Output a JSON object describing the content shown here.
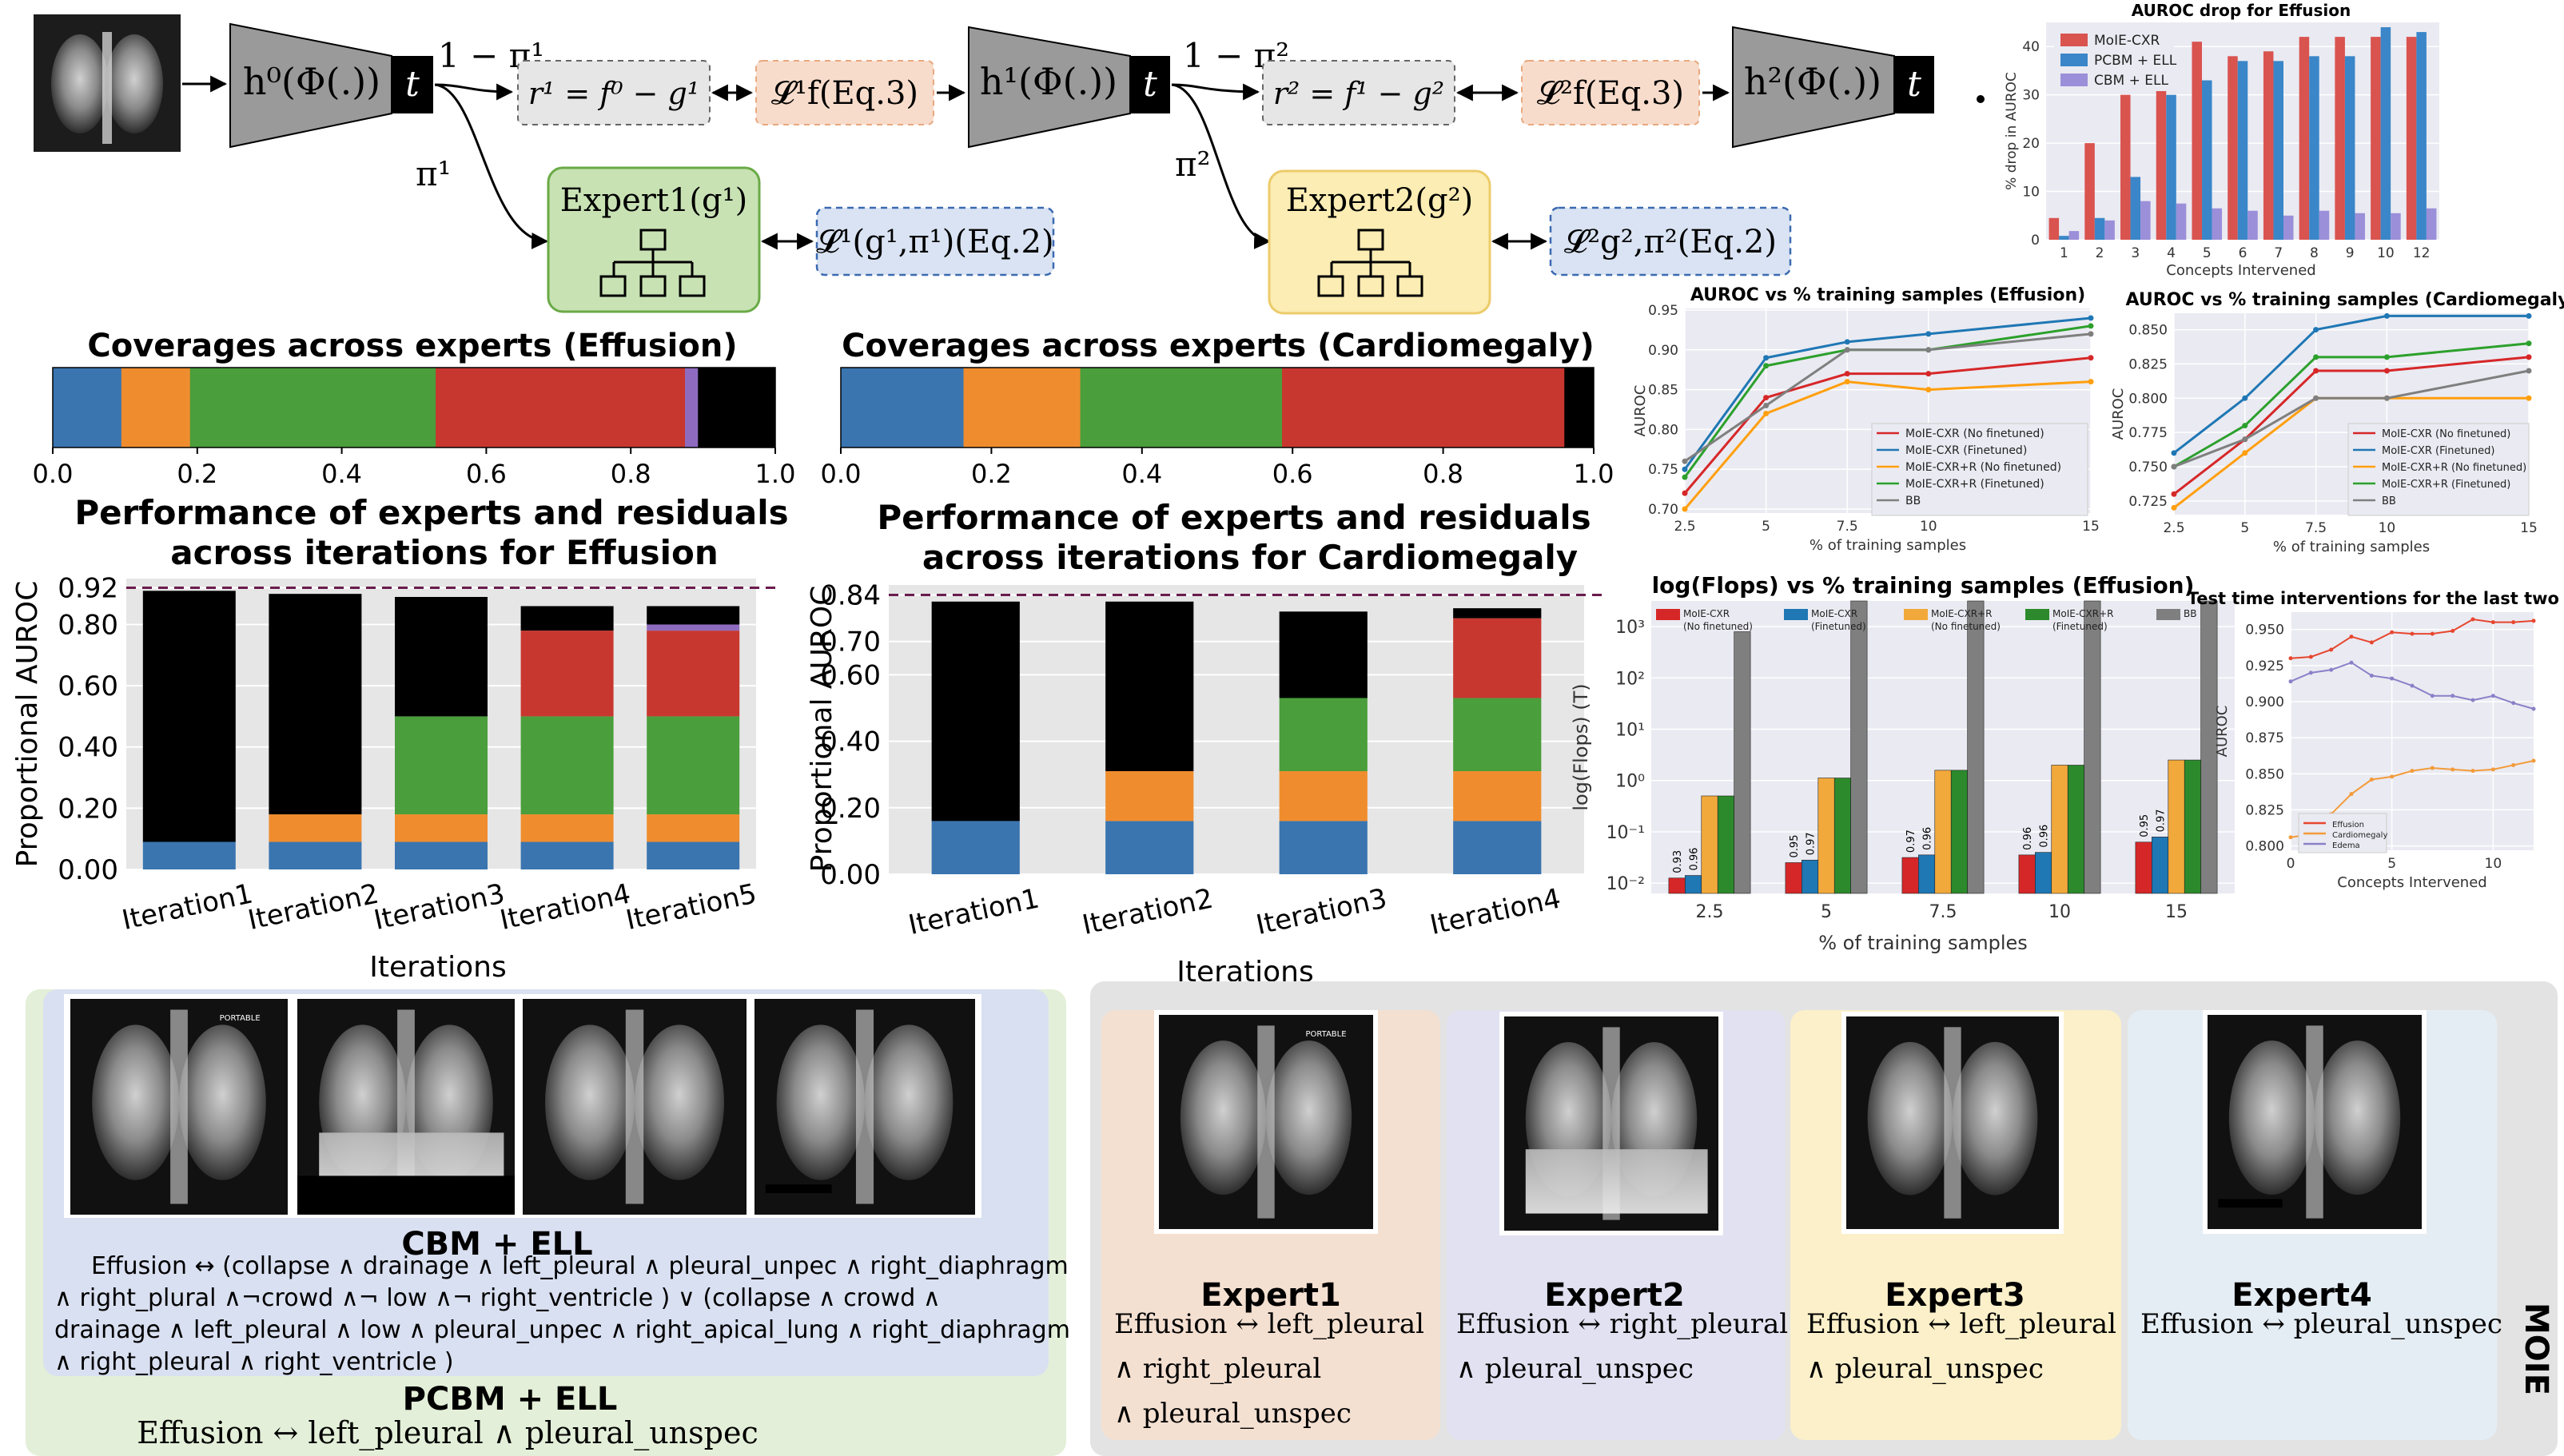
{
  "pipeline": {
    "funcs": [
      "h⁰(Φ(.))",
      "h¹(Φ(.))",
      "h²(Φ(.))"
    ],
    "t": "t",
    "one_minus_pi": [
      "1 − π¹",
      "1 − π²"
    ],
    "pi": [
      "π¹",
      "π²"
    ],
    "residuals": [
      "r¹ = f⁰ − g¹",
      "r² = f¹ − g²"
    ],
    "lf": [
      "𝓛¹f(Eq.3)",
      "𝓛²f(Eq.3)"
    ],
    "experts": [
      "Expert1(g¹)",
      "Expert2(g²)"
    ],
    "lg": [
      "𝓛¹(g¹,π¹)(Eq.2)",
      "𝓛²g²,π²(Eq.2)"
    ]
  },
  "colors": {
    "blue": "#3a75b0",
    "orange": "#ef8d2e",
    "green": "#4a9e3b",
    "red": "#c8372f",
    "purple": "#8e6bbf",
    "black": "#000000",
    "gray": "#808080",
    "bg": "#e6e6e6"
  },
  "coverage": [
    {
      "title": "Coverages across experts (Effusion)",
      "ticks": [
        "0.0",
        "0.2",
        "0.4",
        "0.6",
        "0.8",
        "1.0"
      ],
      "segments": [
        {
          "color": "blue",
          "v": 0.095
        },
        {
          "color": "orange",
          "v": 0.095
        },
        {
          "color": "green",
          "v": 0.34
        },
        {
          "color": "red",
          "v": 0.345
        },
        {
          "color": "purple",
          "v": 0.018
        },
        {
          "color": "black",
          "v": 0.107
        }
      ]
    },
    {
      "title": "Coverages across experts (Cardiomegaly)",
      "ticks": [
        "0.0",
        "0.2",
        "0.4",
        "0.6",
        "0.8",
        "1.0"
      ],
      "segments": [
        {
          "color": "blue",
          "v": 0.163
        },
        {
          "color": "orange",
          "v": 0.155
        },
        {
          "color": "green",
          "v": 0.268
        },
        {
          "color": "red",
          "v": 0.375
        },
        {
          "color": "black",
          "v": 0.039
        }
      ]
    }
  ],
  "chart_data": [
    {
      "type": "bar",
      "title": "Performance of experts and residuals across iterations for Effusion",
      "ylabel": "Proportional AUROC",
      "xlabel": "Iterations",
      "ylim": [
        0,
        0.95
      ],
      "yticks": [
        "0.00",
        "0.20",
        "0.40",
        "0.60",
        "0.80",
        "0.92"
      ],
      "reference": 0.92,
      "categories": [
        "Iteration1",
        "Iteration2",
        "Iteration3",
        "Iteration4",
        "Iteration5"
      ],
      "stacks": [
        [
          {
            "c": "blue",
            "v": 0.09
          },
          {
            "c": "black",
            "v": 0.82
          }
        ],
        [
          {
            "c": "blue",
            "v": 0.09
          },
          {
            "c": "orange",
            "v": 0.09
          },
          {
            "c": "black",
            "v": 0.72
          }
        ],
        [
          {
            "c": "blue",
            "v": 0.09
          },
          {
            "c": "orange",
            "v": 0.09
          },
          {
            "c": "green",
            "v": 0.32
          },
          {
            "c": "black",
            "v": 0.39
          }
        ],
        [
          {
            "c": "blue",
            "v": 0.09
          },
          {
            "c": "orange",
            "v": 0.09
          },
          {
            "c": "green",
            "v": 0.32
          },
          {
            "c": "red",
            "v": 0.28
          },
          {
            "c": "black",
            "v": 0.08
          }
        ],
        [
          {
            "c": "blue",
            "v": 0.09
          },
          {
            "c": "orange",
            "v": 0.09
          },
          {
            "c": "green",
            "v": 0.32
          },
          {
            "c": "red",
            "v": 0.28
          },
          {
            "c": "purple",
            "v": 0.02
          },
          {
            "c": "black",
            "v": 0.06
          }
        ]
      ]
    },
    {
      "type": "bar",
      "title": "Performance of experts and residuals across iterations for Cardiomegaly",
      "ylabel": "Proportional AUROC",
      "xlabel": "Iterations",
      "ylim": [
        0,
        0.87
      ],
      "yticks": [
        "0.00",
        "0.20",
        "0.40",
        "0.60",
        "0.70",
        "0.84"
      ],
      "reference": 0.84,
      "categories": [
        "Iteration1",
        "Iteration2",
        "Iteration3",
        "Iteration4"
      ],
      "stacks": [
        [
          {
            "c": "blue",
            "v": 0.16
          },
          {
            "c": "black",
            "v": 0.66
          }
        ],
        [
          {
            "c": "blue",
            "v": 0.16
          },
          {
            "c": "orange",
            "v": 0.15
          },
          {
            "c": "black",
            "v": 0.51
          }
        ],
        [
          {
            "c": "blue",
            "v": 0.16
          },
          {
            "c": "orange",
            "v": 0.15
          },
          {
            "c": "green",
            "v": 0.22
          },
          {
            "c": "black",
            "v": 0.26
          }
        ],
        [
          {
            "c": "blue",
            "v": 0.16
          },
          {
            "c": "orange",
            "v": 0.15
          },
          {
            "c": "green",
            "v": 0.22
          },
          {
            "c": "red",
            "v": 0.24
          },
          {
            "c": "black",
            "v": 0.03
          }
        ]
      ]
    },
    {
      "type": "bar",
      "title": "AUROC drop for Effusion",
      "xlabel": "Concepts Intervened",
      "ylabel": "% drop in AUROC",
      "ylim": [
        0,
        45
      ],
      "yticks": [
        "0",
        "10",
        "20",
        "30",
        "40"
      ],
      "categories": [
        "1",
        "2",
        "3",
        "4",
        "5",
        "6",
        "7",
        "8",
        "9",
        "10",
        "12"
      ],
      "series": [
        {
          "name": "MoIE-CXR",
          "color": "#d9534f",
          "values": [
            4.5,
            20,
            30,
            36,
            41,
            38,
            39,
            42,
            42,
            42,
            42
          ]
        },
        {
          "name": "PCBM + ELL",
          "color": "#3a86c8",
          "values": [
            0.8,
            4.5,
            13,
            30,
            33,
            37,
            37,
            38,
            38,
            44,
            43
          ]
        },
        {
          "name": "CBM + ELL",
          "color": "#9b8fd9",
          "values": [
            1.8,
            4,
            8,
            7.5,
            6.5,
            6,
            5,
            6,
            5.5,
            5.5,
            6.5
          ]
        }
      ]
    },
    {
      "type": "line",
      "title": "AUROC vs % training samples (Effusion)",
      "xlabel": "% of training samples",
      "ylabel": "AUROC",
      "ylim": [
        0.695,
        0.952
      ],
      "yticks": [
        "0.70",
        "0.75",
        "0.80",
        "0.85",
        "0.90",
        "0.95"
      ],
      "x": [
        2.5,
        5,
        7.5,
        10,
        15
      ],
      "xticks": [
        "2.5",
        "5",
        "7.5",
        "10",
        "15"
      ],
      "series": [
        {
          "name": "MoIE-CXR (No finetuned)",
          "color": "#d62728",
          "values": [
            0.72,
            0.84,
            0.87,
            0.87,
            0.89
          ]
        },
        {
          "name": "MoIE-CXR (Finetuned)",
          "color": "#1f77b4",
          "values": [
            0.75,
            0.89,
            0.91,
            0.92,
            0.94
          ]
        },
        {
          "name": "MoIE-CXR+R (No finetuned)",
          "color": "#ff9f0e",
          "values": [
            0.7,
            0.82,
            0.86,
            0.85,
            0.86
          ]
        },
        {
          "name": "MoIE-CXR+R (Finetuned)",
          "color": "#2ca02c",
          "values": [
            0.74,
            0.88,
            0.9,
            0.9,
            0.93
          ]
        },
        {
          "name": "BB",
          "color": "#7f7f7f",
          "values": [
            0.76,
            0.83,
            0.9,
            0.9,
            0.92
          ]
        }
      ]
    },
    {
      "type": "line",
      "title": "AUROC vs % training samples (Cardiomegaly)",
      "xlabel": "% of training samples",
      "ylabel": "AUROC",
      "ylim": [
        0.715,
        0.862
      ],
      "yticks": [
        "0.725",
        "0.750",
        "0.775",
        "0.800",
        "0.825",
        "0.850"
      ],
      "x": [
        2.5,
        5,
        7.5,
        10,
        15
      ],
      "xticks": [
        "2.5",
        "5",
        "7.5",
        "10",
        "15"
      ],
      "series": [
        {
          "name": "MoIE-CXR (No finetuned)",
          "color": "#d62728",
          "values": [
            0.73,
            0.77,
            0.82,
            0.82,
            0.83
          ]
        },
        {
          "name": "MoIE-CXR (Finetuned)",
          "color": "#1f77b4",
          "values": [
            0.76,
            0.8,
            0.85,
            0.86,
            0.86
          ]
        },
        {
          "name": "MoIE-CXR+R (No finetuned)",
          "color": "#ff9f0e",
          "values": [
            0.72,
            0.76,
            0.8,
            0.8,
            0.8
          ]
        },
        {
          "name": "MoIE-CXR+R (Finetuned)",
          "color": "#2ca02c",
          "values": [
            0.75,
            0.78,
            0.83,
            0.83,
            0.84
          ]
        },
        {
          "name": "BB",
          "color": "#7f7f7f",
          "values": [
            0.75,
            0.77,
            0.8,
            0.8,
            0.82
          ]
        }
      ]
    },
    {
      "type": "bar",
      "title": "log(Flops) vs % training samples (Effusion)",
      "xlabel": "% of training samples",
      "ylabel": "log(Flops) (T)",
      "log": true,
      "ylim": [
        -2.2,
        3.5
      ],
      "yticks": [
        "10⁻²",
        "10⁻¹",
        "10⁰",
        "10¹",
        "10²",
        "10³"
      ],
      "ytick_vals": [
        -2,
        -1,
        0,
        1,
        2,
        3
      ],
      "categories": [
        "2.5",
        "5",
        "7.5",
        "10",
        "15"
      ],
      "series": [
        {
          "name": "MoIE-CXR (No finetuned)",
          "color": "#d62728",
          "log_values": [
            -1.9,
            -1.6,
            -1.5,
            -1.45,
            -1.2
          ],
          "labels": [
            "0.93",
            "0.95",
            "0.97",
            "0.96",
            "0.95"
          ]
        },
        {
          "name": "MoIE-CXR (Finetuned)",
          "color": "#1f77b4",
          "log_values": [
            -1.85,
            -1.55,
            -1.45,
            -1.4,
            -1.1
          ],
          "labels": [
            "0.96",
            "0.97",
            "0.96",
            "0.96",
            "0.97"
          ]
        },
        {
          "name": "MoIE-CXR+R (No finetuned)",
          "color": "#f2a93b",
          "log_values": [
            -0.3,
            0.05,
            0.2,
            0.3,
            0.4
          ],
          "labels": [
            "",
            "",
            "",
            "",
            ""
          ]
        },
        {
          "name": "MoIE-CXR+R (Finetuned)",
          "color": "#2c8a2c",
          "log_values": [
            -0.3,
            0.05,
            0.2,
            0.3,
            0.4
          ],
          "labels": [
            "",
            "",
            "",
            "",
            ""
          ]
        },
        {
          "name": "BB",
          "color": "#7f7f7f",
          "log_values": [
            2.9,
            3.5,
            3.5,
            3.5,
            3.5
          ],
          "labels": [
            "",
            "",
            "",
            "",
            ""
          ]
        }
      ]
    },
    {
      "type": "line",
      "title": "Test time interventions for the last two experts",
      "xlabel": "Concepts Intervened",
      "ylabel": "AUROC",
      "ylim": [
        0.797,
        0.962
      ],
      "yticks": [
        "0.800",
        "0.825",
        "0.850",
        "0.875",
        "0.900",
        "0.925",
        "0.950"
      ],
      "xticks": [
        "0",
        "5",
        "10"
      ],
      "x": [
        0,
        1,
        2,
        3,
        4,
        5,
        6,
        7,
        8,
        9,
        10,
        11,
        12
      ],
      "series": [
        {
          "name": "Effusion",
          "color": "#e7462f",
          "values": [
            0.93,
            0.931,
            0.936,
            0.945,
            0.941,
            0.948,
            0.947,
            0.947,
            0.949,
            0.957,
            0.955,
            0.955,
            0.956
          ]
        },
        {
          "name": "Cardiomegaly",
          "color": "#f29b3a",
          "values": [
            0.806,
            0.808,
            0.822,
            0.836,
            0.846,
            0.848,
            0.852,
            0.854,
            0.853,
            0.852,
            0.853,
            0.856,
            0.859
          ]
        },
        {
          "name": "Edema",
          "color": "#8a80c8",
          "values": [
            0.914,
            0.92,
            0.922,
            0.927,
            0.918,
            0.916,
            0.911,
            0.904,
            0.904,
            0.901,
            0.904,
            0.899,
            0.895
          ]
        }
      ]
    }
  ],
  "bottom": {
    "cbm_title": "CBM + ELL",
    "cbm_rule": [
      "Effusion ↔ (collapse ∧ drainage ∧ left_pleural ∧ pleural_unpec ∧ right_diaphragm",
      "∧ right_plural ∧¬crowd ∧¬ low ∧¬ right_ventricle ) ∨ (collapse ∧ crowd ∧",
      "drainage ∧ left_pleural ∧ low ∧ pleural_unpec ∧ right_apical_lung ∧ right_diaphragm",
      "∧ right_pleural ∧ right_ventricle )"
    ],
    "pcbm_title": "PCBM + ELL",
    "pcbm_rule": "Effusion ↔ left_pleural ∧ pleural_unspec",
    "experts": [
      {
        "title": "Expert1",
        "lines": [
          "Effusion ↔ left_pleural",
          "∧ right_pleural",
          "∧ pleural_unspec"
        ]
      },
      {
        "title": "Expert2",
        "lines": [
          "Effusion ↔ right_pleural",
          "∧ pleural_unspec"
        ]
      },
      {
        "title": "Expert3",
        "lines": [
          "Effusion ↔ left_pleural",
          "∧ pleural_unspec"
        ]
      },
      {
        "title": "Expert4",
        "lines": [
          "Effusion ↔ pleural_unspec"
        ]
      }
    ],
    "moie_label": "MOIE",
    "xray_tags": [
      "PORTABLE",
      "PORTABLE"
    ]
  }
}
